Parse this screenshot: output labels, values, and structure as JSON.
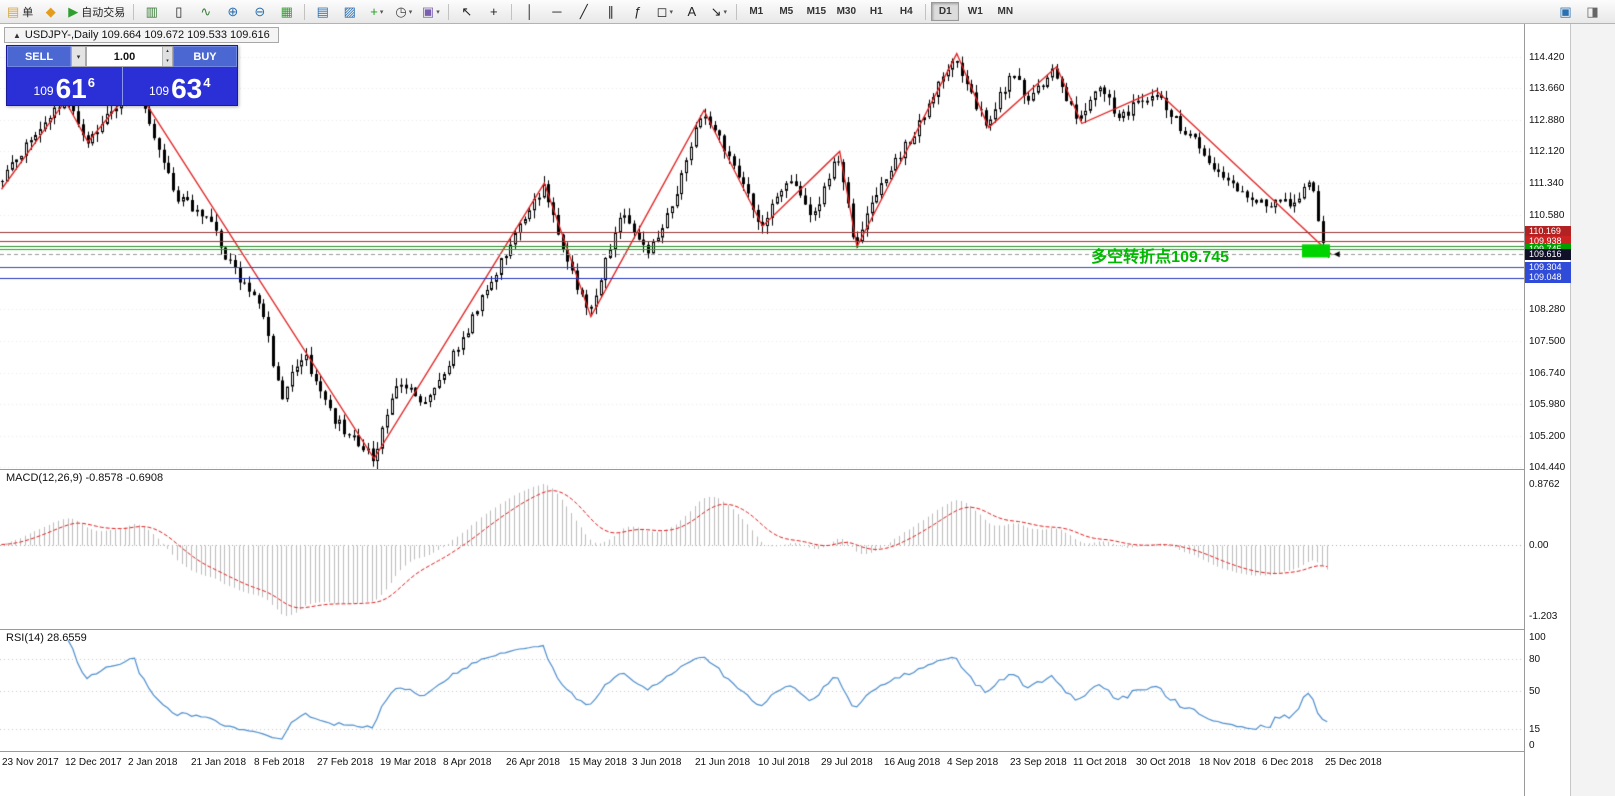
{
  "toolbar": {
    "groups": [
      {
        "items": [
          {
            "name": "new-order",
            "glyph": "▤",
            "color": "#d9a43b",
            "label": "单"
          },
          {
            "name": "alerts",
            "glyph": "◆",
            "color": "#e39c1c"
          },
          {
            "name": "auto-trading",
            "glyph": "▶",
            "color": "#2f9e2f",
            "label": "自动交易"
          }
        ]
      },
      {
        "items": [
          {
            "name": "bar-chart",
            "glyph": "▥",
            "color": "#3a7d3a"
          },
          {
            "name": "candlestick-chart",
            "glyph": "▯",
            "color": "#222222"
          },
          {
            "name": "line-chart",
            "glyph": "∿",
            "color": "#3a7d3a"
          },
          {
            "name": "zoom-in",
            "glyph": "⊕",
            "color": "#2a6fb0"
          },
          {
            "name": "zoom-out",
            "glyph": "⊖",
            "color": "#2a6fb0"
          },
          {
            "name": "tile-windows",
            "glyph": "▦",
            "color": "#2f9e2f"
          }
        ]
      },
      {
        "items": [
          {
            "name": "charts-list",
            "glyph": "▤",
            "color": "#2a6fb0"
          },
          {
            "name": "arrange-windows",
            "glyph": "▨",
            "color": "#2a6fb0"
          },
          {
            "name": "indicators",
            "glyph": "+",
            "color": "#1f9e1f",
            "dropdown": true
          },
          {
            "name": "periods",
            "glyph": "◷",
            "color": "#444444",
            "dropdown": true
          },
          {
            "name": "templates",
            "glyph": "▣",
            "color": "#7a5fb0",
            "dropdown": true
          }
        ]
      },
      {
        "items": [
          {
            "name": "cursor",
            "glyph": "↖",
            "color": "#222222"
          },
          {
            "name": "crosshair",
            "glyph": "+",
            "color": "#222222"
          }
        ]
      },
      {
        "items": [
          {
            "name": "vertical-line",
            "glyph": "│",
            "color": "#222222"
          },
          {
            "name": "horizontal-line",
            "glyph": "─",
            "color": "#222222"
          },
          {
            "name": "trendline",
            "glyph": "╱",
            "color": "#222222"
          },
          {
            "name": "equidistant-channel",
            "glyph": "∥",
            "color": "#222222"
          },
          {
            "name": "fibonacci",
            "glyph": "ƒ",
            "color": "#222222"
          },
          {
            "name": "shapes",
            "glyph": "◻",
            "color": "#222222",
            "dropdown": true
          },
          {
            "name": "text-label",
            "glyph": "A",
            "color": "#222222"
          },
          {
            "name": "arrows",
            "glyph": "↘",
            "color": "#222222",
            "dropdown": true
          }
        ]
      }
    ],
    "timeframes": [
      {
        "label": "M1"
      },
      {
        "label": "M5"
      },
      {
        "label": "M15"
      },
      {
        "label": "M30"
      },
      {
        "label": "H1"
      },
      {
        "label": "H4"
      },
      {
        "label": "D1",
        "active": true
      },
      {
        "label": "W1"
      },
      {
        "label": "MN"
      }
    ],
    "right_items": [
      {
        "name": "chart-window",
        "glyph": "▣",
        "color": "#2a6fb0"
      },
      {
        "name": "panel-toggle",
        "glyph": "◨",
        "color": "#666666"
      }
    ]
  },
  "chart_header": {
    "icon": "▲",
    "text": "USDJPY-,Daily  109.664 109.672 109.533 109.616"
  },
  "trade_panel": {
    "sell_label": "SELL",
    "buy_label": "BUY",
    "volume": "1.00",
    "sell_price": {
      "prefix": "109",
      "big": "61",
      "sup": "6"
    },
    "buy_price": {
      "prefix": "109",
      "big": "63",
      "sup": "4"
    }
  },
  "chart_data": {
    "type": "candlestick",
    "symbol": "USDJPY-",
    "period": "Daily",
    "current": {
      "open": 109.664,
      "high": 109.672,
      "low": 109.533,
      "close": 109.616
    },
    "price_axis": {
      "min": 104.37,
      "max": 115.22,
      "labels": [
        "114.420",
        "113.660",
        "112.880",
        "112.120",
        "111.340",
        "110.580",
        "109.820",
        "109.040",
        "108.280",
        "107.500",
        "106.740",
        "105.980",
        "105.200",
        "104.440"
      ]
    },
    "candles": {
      "count": 280,
      "span_frac": 0.873,
      "seed": 20180101,
      "anchors": [
        [
          0,
          111.4
        ],
        [
          0.02,
          112.4
        ],
        [
          0.048,
          113.35
        ],
        [
          0.065,
          112.4
        ],
        [
          0.1,
          113.72
        ],
        [
          0.13,
          111.1
        ],
        [
          0.155,
          110.45
        ],
        [
          0.175,
          109.2
        ],
        [
          0.195,
          108.4
        ],
        [
          0.21,
          106.1
        ],
        [
          0.228,
          107.2
        ],
        [
          0.25,
          105.6
        ],
        [
          0.28,
          104.7
        ],
        [
          0.3,
          106.6
        ],
        [
          0.318,
          105.9
        ],
        [
          0.345,
          107.4
        ],
        [
          0.375,
          109.4
        ],
        [
          0.408,
          111.3
        ],
        [
          0.432,
          108.9
        ],
        [
          0.443,
          108.15
        ],
        [
          0.468,
          110.8
        ],
        [
          0.487,
          109.6
        ],
        [
          0.51,
          111.2
        ],
        [
          0.528,
          113.1
        ],
        [
          0.552,
          111.8
        ],
        [
          0.572,
          110.35
        ],
        [
          0.595,
          111.4
        ],
        [
          0.612,
          110.55
        ],
        [
          0.63,
          112.1
        ],
        [
          0.643,
          109.85
        ],
        [
          0.665,
          111.4
        ],
        [
          0.69,
          112.7
        ],
        [
          0.718,
          114.45
        ],
        [
          0.742,
          112.75
        ],
        [
          0.762,
          114.05
        ],
        [
          0.775,
          113.35
        ],
        [
          0.793,
          114.15
        ],
        [
          0.812,
          112.85
        ],
        [
          0.828,
          113.65
        ],
        [
          0.843,
          112.95
        ],
        [
          0.868,
          113.55
        ],
        [
          0.895,
          112.5
        ],
        [
          0.92,
          111.6
        ],
        [
          0.945,
          110.8
        ],
        [
          0.975,
          110.9
        ],
        [
          0.988,
          111.3
        ],
        [
          0.996,
          109.9
        ],
        [
          1,
          109.66
        ]
      ]
    },
    "zigzag": {
      "color": "#e02020",
      "points": [
        [
          0,
          111.2
        ],
        [
          0.048,
          113.35
        ],
        [
          0.065,
          112.35
        ],
        [
          0.1,
          113.72
        ],
        [
          0.28,
          104.65
        ],
        [
          0.408,
          111.35
        ],
        [
          0.443,
          108.1
        ],
        [
          0.528,
          113.12
        ],
        [
          0.572,
          110.3
        ],
        [
          0.63,
          112.12
        ],
        [
          0.643,
          109.8
        ],
        [
          0.718,
          114.5
        ],
        [
          0.742,
          112.7
        ],
        [
          0.793,
          114.18
        ],
        [
          0.812,
          112.8
        ],
        [
          0.868,
          113.6
        ],
        [
          1,
          109.6
        ]
      ]
    },
    "hlines": [
      {
        "price": 110.169,
        "color": "#993333"
      },
      {
        "price": 109.938,
        "color": "#cc2222"
      },
      {
        "price": 109.816,
        "color": "#2e8b2e"
      },
      {
        "price": 109.745,
        "color": "#00bb00"
      },
      {
        "price": 109.616,
        "color": "#999999",
        "dash": true
      },
      {
        "price": 109.304,
        "color": "#3344cc"
      },
      {
        "price": 109.048,
        "color": "#2233bb"
      }
    ],
    "price_tags": [
      {
        "text": "110.169",
        "bg": "#b22222"
      },
      {
        "text": "109.938",
        "bg": "#cc2222"
      },
      {
        "text": "109.745",
        "bg": "#00a000"
      },
      {
        "text": "109.304",
        "bg": "#2f4bd7"
      },
      {
        "text": "109.048",
        "bg": "#2f4bd7"
      },
      {
        "text": "109.616",
        "bg": "#10102a"
      }
    ],
    "rect_marker": {
      "x_frac_left": 0.8543,
      "x_frac_right": 0.8727,
      "price_top": 109.86,
      "price_bottom": 109.54,
      "color": "#00d400"
    },
    "annotation": {
      "text": "多空转折点109.745",
      "color": "#00b800",
      "x_frac": 0.716,
      "price": 109.89
    },
    "macd": {
      "label": "MACD(12,26,9) -0.8578 -0.6908",
      "axis_labels": [
        "0.8762",
        "0.00",
        "-1.203"
      ],
      "hist_color": "#bdbdbd",
      "signal_color": "#dd2222"
    },
    "rsi": {
      "label": "RSI(14) 28.6559",
      "axis_labels": [
        "100",
        "80",
        "50",
        "15",
        "0"
      ],
      "levels": [
        80,
        50,
        15
      ],
      "line_color": "#4f8fce"
    },
    "time_labels": [
      "23 Nov 2017",
      "12 Dec 2017",
      "2 Jan 2018",
      "21 Jan 2018",
      "8 Feb 2018",
      "27 Feb 2018",
      "19 Mar 2018",
      "8 Apr 2018",
      "26 Apr 2018",
      "15 May 2018",
      "3 Jun 2018",
      "21 Jun 2018",
      "10 Jul 2018",
      "29 Jul 2018",
      "16 Aug 2018",
      "4 Sep 2018",
      "23 Sep 2018",
      "11 Oct 2018",
      "30 Oct 2018",
      "18 Nov 2018",
      "6 Dec 2018",
      "25 Dec 2018"
    ]
  }
}
